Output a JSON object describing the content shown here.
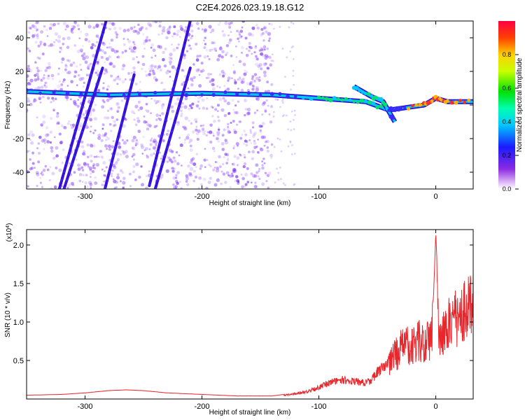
{
  "chart_data": [
    {
      "type": "heatmap",
      "title": "C2E4.2026.023.19.18.G12",
      "xlabel": "Height of straight line (km)",
      "ylabel": "Frequency (Hz)",
      "xlim": [
        -350,
        32
      ],
      "ylim": [
        -50,
        50
      ],
      "xticks": [
        -300,
        -200,
        -100,
        0
      ],
      "yticks": [
        -40,
        -20,
        0,
        20,
        40
      ],
      "colorbar": {
        "label": "Normalized spectral amplitude",
        "range": [
          0,
          1
        ],
        "ticks": [
          0.0,
          0.2,
          0.4,
          0.6,
          0.8
        ]
      },
      "features": [
        {
          "name": "main-trend",
          "points": [
            [
              -350,
              8
            ],
            [
              -280,
              6
            ],
            [
              -200,
              7
            ],
            [
              -140,
              6
            ],
            [
              -100,
              4
            ],
            [
              -80,
              3
            ],
            [
              -60,
              2
            ],
            [
              -40,
              -3
            ],
            [
              -30,
              -2
            ],
            [
              -10,
              0
            ],
            [
              0,
              4
            ],
            [
              10,
              2
            ],
            [
              32,
              2
            ]
          ]
        },
        {
          "name": "streak-1",
          "points": [
            [
              -322,
              -50
            ],
            [
              -282,
              50
            ]
          ]
        },
        {
          "name": "streak-2",
          "points": [
            [
              -318,
              -50
            ],
            [
              -285,
              22
            ]
          ]
        },
        {
          "name": "streak-3",
          "points": [
            [
              -283,
              -50
            ],
            [
              -258,
              18
            ]
          ]
        },
        {
          "name": "streak-4",
          "points": [
            [
              -245,
              -48
            ],
            [
              -210,
              50
            ]
          ]
        },
        {
          "name": "streak-5",
          "points": [
            [
              -240,
              -50
            ],
            [
              -210,
              22
            ]
          ]
        },
        {
          "name": "high-freq-branch",
          "points": [
            [
              -70,
              11
            ],
            [
              -55,
              5
            ],
            [
              -45,
              2
            ],
            [
              -35,
              -10
            ]
          ]
        }
      ]
    },
    {
      "type": "line",
      "title": "",
      "xlabel": "Height of straight line (km)",
      "ylabel": "SNR (10 * v/v)",
      "scale_label": "(x10^4)",
      "scale_base": "(x10",
      "scale_exp": "4",
      "xlim": [
        -350,
        32
      ],
      "ylim": [
        0,
        2.2
      ],
      "xticks": [
        -300,
        -200,
        -100,
        0
      ],
      "yticks": [
        0.5,
        1.0,
        1.5,
        2.0
      ],
      "ytick_labels": [
        "0.5",
        "1.0",
        "1.5",
        "2.0"
      ],
      "series": [
        {
          "name": "SNR",
          "color": "#e8262b",
          "x": [
            -350,
            -320,
            -300,
            -280,
            -265,
            -250,
            -230,
            -200,
            -170,
            -140,
            -120,
            -110,
            -100,
            -90,
            -80,
            -70,
            -60,
            -55,
            -50,
            -45,
            -40,
            -35,
            -30,
            -25,
            -20,
            -15,
            -10,
            -5,
            -2,
            0,
            3,
            10,
            20,
            32
          ],
          "y": [
            0.05,
            0.06,
            0.08,
            0.11,
            0.12,
            0.11,
            0.08,
            0.06,
            0.04,
            0.04,
            0.08,
            0.12,
            0.18,
            0.26,
            0.3,
            0.28,
            0.25,
            0.3,
            0.42,
            0.5,
            0.6,
            0.78,
            0.9,
            0.95,
            0.98,
            1.02,
            1.05,
            1.1,
            1.3,
            2.15,
            1.1,
            1.3,
            1.48,
            1.66
          ]
        }
      ]
    }
  ],
  "colors": {
    "background": "#ffffff",
    "axis": "#000000",
    "snr_line": "#e8262b",
    "speckle": "#9a5bff"
  }
}
